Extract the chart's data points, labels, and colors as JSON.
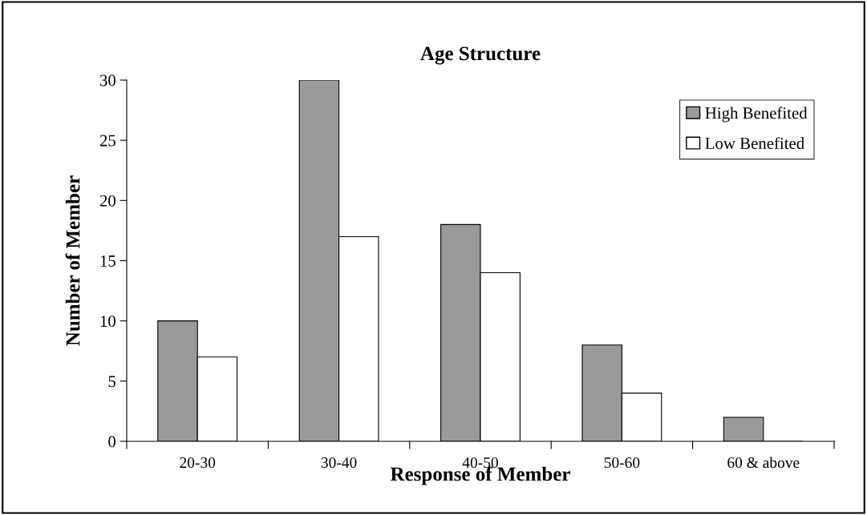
{
  "chart_data": {
    "type": "bar",
    "title": "Age Structure",
    "xlabel": "Response of Member",
    "ylabel": "Number of Member",
    "categories": [
      "20-30",
      "30-40",
      "40-50",
      "50-60",
      "60 & above"
    ],
    "series": [
      {
        "name": "High Benefited",
        "color": "#9a9a9a",
        "values": [
          10,
          30,
          18,
          8,
          2
        ]
      },
      {
        "name": "Low Benefited",
        "color": "#ffffff",
        "values": [
          7,
          17,
          14,
          4,
          0
        ]
      }
    ],
    "ylim": [
      0,
      30
    ],
    "yticks": [
      0,
      5,
      10,
      15,
      20,
      25,
      30
    ],
    "grid": false,
    "legend": "top right"
  }
}
